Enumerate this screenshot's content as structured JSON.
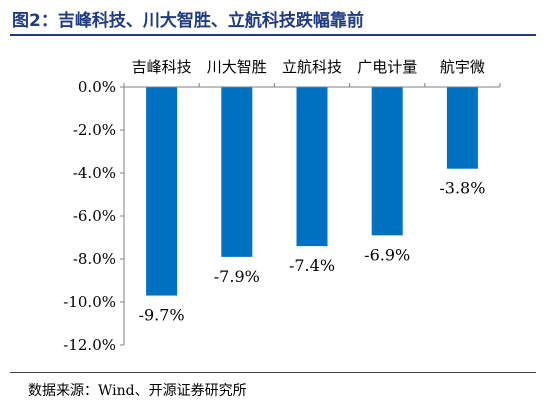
{
  "figure": {
    "title": "图2：吉峰科技、川大智胜、立航科技跌幅靠前",
    "source": "数据来源：Wind、开源证券研究所"
  },
  "chart_data": {
    "type": "bar",
    "title": "",
    "xlabel": "",
    "ylabel": "",
    "categories": [
      "吉峰科技",
      "川大智胜",
      "立航科技",
      "广电计量",
      "航宇微"
    ],
    "values": [
      -9.7,
      -7.9,
      -7.4,
      -6.9,
      -3.8
    ],
    "data_labels": [
      "-9.7%",
      "-7.9%",
      "-7.4%",
      "-6.9%",
      "-3.8%"
    ],
    "ylim": [
      -12,
      0
    ],
    "yticks": [
      0,
      -2,
      -4,
      -6,
      -8,
      -10,
      -12
    ],
    "ytick_labels": [
      "0.0%",
      "-2.0%",
      "-4.0%",
      "-6.0%",
      "-8.0%",
      "-10.0%",
      "-12.0%"
    ],
    "x_axis_position": "top",
    "legend": "none",
    "grid": false,
    "bar_color": "#0070C0"
  }
}
